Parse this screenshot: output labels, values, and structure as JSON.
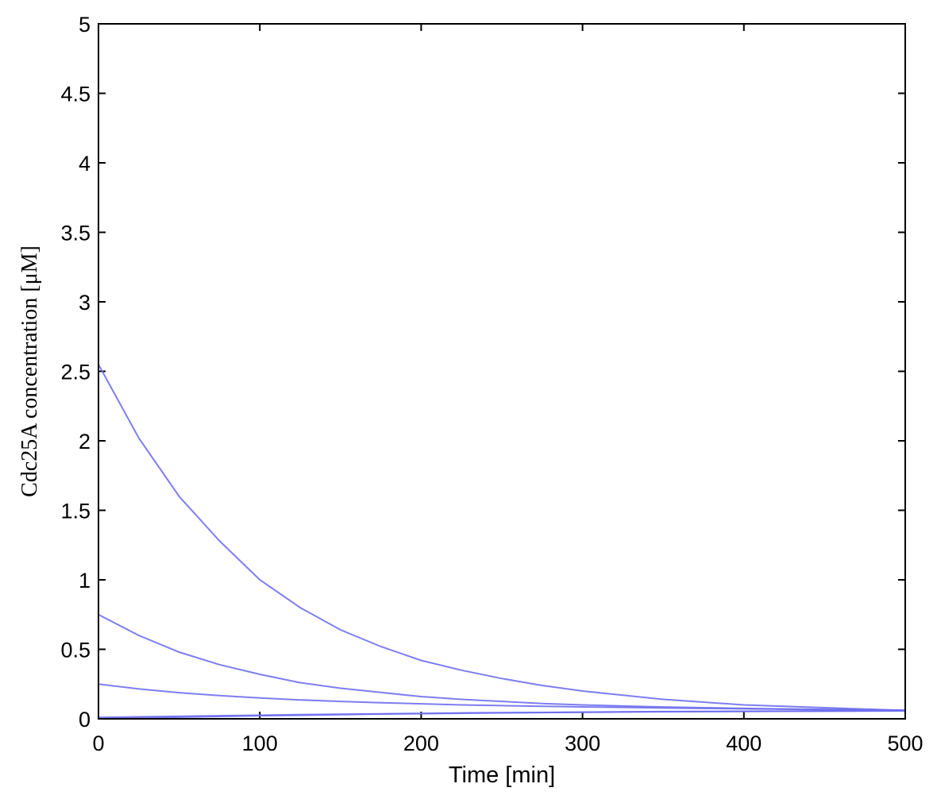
{
  "chart_data": {
    "type": "line",
    "title": "",
    "xlabel": "Time [min]",
    "ylabel": "Cdc25A concentration [μM]",
    "xlim": [
      0,
      500
    ],
    "ylim": [
      0,
      5
    ],
    "xticks": [
      0,
      100,
      200,
      300,
      400,
      500
    ],
    "yticks": [
      0,
      0.5,
      1,
      1.5,
      2,
      2.5,
      3,
      3.5,
      4,
      4.5,
      5
    ],
    "xtick_labels": [
      "0",
      "100",
      "200",
      "300",
      "400",
      "500"
    ],
    "ytick_labels": [
      "0",
      "0.5",
      "1",
      "1.5",
      "2",
      "2.5",
      "3",
      "3.5",
      "4",
      "4.5",
      "5"
    ],
    "grid": false,
    "x": [
      0,
      25,
      50,
      75,
      100,
      125,
      150,
      175,
      200,
      225,
      250,
      275,
      300,
      325,
      350,
      375,
      400,
      425,
      450,
      475,
      500
    ],
    "series": [
      {
        "values": [
          2.55,
          2.02,
          1.6,
          1.28,
          1.0,
          0.8,
          0.64,
          0.52,
          0.42,
          0.35,
          0.29,
          0.24,
          0.2,
          0.17,
          0.14,
          0.12,
          0.1,
          0.09,
          0.08,
          0.07,
          0.06
        ]
      },
      {
        "values": [
          0.75,
          0.6,
          0.48,
          0.39,
          0.32,
          0.26,
          0.22,
          0.19,
          0.16,
          0.14,
          0.125,
          0.11,
          0.1,
          0.092,
          0.085,
          0.08,
          0.075,
          0.071,
          0.068,
          0.065,
          0.062
        ]
      },
      {
        "values": [
          0.25,
          0.215,
          0.188,
          0.167,
          0.15,
          0.136,
          0.125,
          0.116,
          0.108,
          0.1,
          0.095,
          0.09,
          0.086,
          0.082,
          0.078,
          0.075,
          0.072,
          0.069,
          0.066,
          0.063,
          0.06
        ]
      },
      {
        "values": [
          0.01,
          0.014,
          0.018,
          0.022,
          0.026,
          0.03,
          0.033,
          0.036,
          0.039,
          0.042,
          0.044,
          0.046,
          0.048,
          0.05,
          0.052,
          0.053,
          0.054,
          0.055,
          0.056,
          0.057,
          0.058
        ]
      },
      {
        "values": [
          0.0,
          0.006,
          0.012,
          0.017,
          0.022,
          0.026,
          0.03,
          0.034,
          0.037,
          0.04,
          0.043,
          0.045,
          0.047,
          0.049,
          0.051,
          0.052,
          0.053,
          0.054,
          0.055,
          0.056,
          0.057
        ]
      }
    ],
    "colors": {
      "line": "#6f6ff0",
      "axis": "#000000"
    }
  }
}
